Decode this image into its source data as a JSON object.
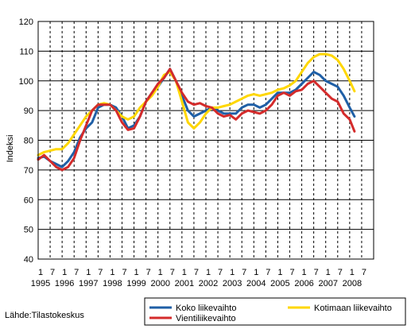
{
  "chart_data": {
    "type": "line",
    "title": "",
    "xlabel": "",
    "ylabel": "Indeksi",
    "ylim": [
      40,
      120
    ],
    "yticks": [
      "40",
      "50",
      "60",
      "70",
      "80",
      "90",
      "100",
      "110",
      "120"
    ],
    "month_ticks": [
      "1",
      "7",
      "1",
      "7",
      "1",
      "7",
      "1",
      "7",
      "1",
      "7",
      "1",
      "7",
      "1",
      "7",
      "1",
      "7",
      "1",
      "7",
      "1",
      "7",
      "1",
      "7",
      "1",
      "7",
      "1",
      "7",
      "1",
      "7"
    ],
    "year_ticks": [
      "1995",
      "1996",
      "1997",
      "1998",
      "1999",
      "2000",
      "2001",
      "2002",
      "2003",
      "2004",
      "2005",
      "2006",
      "2007",
      "2008"
    ],
    "x_start": 1995.0,
    "x_end": 2009.0,
    "grid": true,
    "legend_position": "bottom",
    "source": "Lähde:Tilastokeskus",
    "series": [
      {
        "name": "Koko liikevaihto",
        "color": "#1f5fa6",
        "points": [
          [
            1995.0,
            74
          ],
          [
            1995.25,
            74.5
          ],
          [
            1995.5,
            73
          ],
          [
            1995.75,
            72
          ],
          [
            1996.0,
            71
          ],
          [
            1996.25,
            73
          ],
          [
            1996.5,
            76
          ],
          [
            1996.75,
            81
          ],
          [
            1997.0,
            84
          ],
          [
            1997.25,
            86
          ],
          [
            1997.5,
            91
          ],
          [
            1997.75,
            92
          ],
          [
            1998.0,
            92
          ],
          [
            1998.25,
            91
          ],
          [
            1998.5,
            88
          ],
          [
            1998.75,
            84
          ],
          [
            1999.0,
            85
          ],
          [
            1999.25,
            88
          ],
          [
            1999.5,
            93
          ],
          [
            1999.75,
            96
          ],
          [
            2000.0,
            98
          ],
          [
            2000.25,
            101
          ],
          [
            2000.5,
            104
          ],
          [
            2000.75,
            100
          ],
          [
            2001.0,
            95
          ],
          [
            2001.25,
            90
          ],
          [
            2001.5,
            88
          ],
          [
            2001.75,
            89
          ],
          [
            2002.0,
            90
          ],
          [
            2002.25,
            91
          ],
          [
            2002.5,
            90
          ],
          [
            2002.75,
            89
          ],
          [
            2003.0,
            89
          ],
          [
            2003.25,
            89
          ],
          [
            2003.5,
            91
          ],
          [
            2003.75,
            92
          ],
          [
            2004.0,
            92
          ],
          [
            2004.25,
            91
          ],
          [
            2004.5,
            92
          ],
          [
            2004.75,
            94
          ],
          [
            2005.0,
            96
          ],
          [
            2005.25,
            96
          ],
          [
            2005.5,
            96
          ],
          [
            2005.75,
            97
          ],
          [
            2006.0,
            99
          ],
          [
            2006.25,
            101
          ],
          [
            2006.5,
            103
          ],
          [
            2006.75,
            102
          ],
          [
            2007.0,
            100
          ],
          [
            2007.25,
            99
          ],
          [
            2007.5,
            98
          ],
          [
            2007.75,
            95
          ],
          [
            2008.0,
            91
          ],
          [
            2008.2,
            88
          ]
        ]
      },
      {
        "name": "Kotimaan liikevaihto",
        "color": "#ffd700",
        "points": [
          [
            1995.0,
            75
          ],
          [
            1995.25,
            76
          ],
          [
            1995.5,
            76.5
          ],
          [
            1995.75,
            77
          ],
          [
            1996.0,
            77
          ],
          [
            1996.25,
            79
          ],
          [
            1996.5,
            82
          ],
          [
            1996.75,
            85
          ],
          [
            1997.0,
            88
          ],
          [
            1997.25,
            90
          ],
          [
            1997.5,
            92
          ],
          [
            1997.75,
            92.5
          ],
          [
            1998.0,
            92
          ],
          [
            1998.25,
            90
          ],
          [
            1998.5,
            88
          ],
          [
            1998.75,
            87
          ],
          [
            1999.0,
            88
          ],
          [
            1999.25,
            91
          ],
          [
            1999.5,
            93
          ],
          [
            1999.75,
            95
          ],
          [
            2000.0,
            98
          ],
          [
            2000.25,
            102
          ],
          [
            2000.5,
            103
          ],
          [
            2000.75,
            100
          ],
          [
            2001.0,
            93
          ],
          [
            2001.25,
            86
          ],
          [
            2001.5,
            84
          ],
          [
            2001.75,
            86
          ],
          [
            2002.0,
            89
          ],
          [
            2002.25,
            91
          ],
          [
            2002.5,
            91
          ],
          [
            2002.75,
            91.5
          ],
          [
            2003.0,
            92
          ],
          [
            2003.25,
            93
          ],
          [
            2003.5,
            94
          ],
          [
            2003.75,
            95
          ],
          [
            2004.0,
            95.5
          ],
          [
            2004.25,
            95
          ],
          [
            2004.5,
            95.5
          ],
          [
            2004.75,
            96
          ],
          [
            2005.0,
            97
          ],
          [
            2005.25,
            97.5
          ],
          [
            2005.5,
            98.5
          ],
          [
            2005.75,
            100
          ],
          [
            2006.0,
            103
          ],
          [
            2006.25,
            106
          ],
          [
            2006.5,
            108
          ],
          [
            2006.75,
            109
          ],
          [
            2007.0,
            109
          ],
          [
            2007.25,
            108.5
          ],
          [
            2007.5,
            107
          ],
          [
            2007.75,
            104
          ],
          [
            2008.0,
            100
          ],
          [
            2008.2,
            96.5
          ]
        ]
      },
      {
        "name": "Vientiliikevaihto",
        "color": "#d42b2b",
        "points": [
          [
            1995.0,
            73.5
          ],
          [
            1995.25,
            75
          ],
          [
            1995.5,
            73
          ],
          [
            1995.75,
            71
          ],
          [
            1996.0,
            70
          ],
          [
            1996.25,
            71
          ],
          [
            1996.5,
            74
          ],
          [
            1996.75,
            80
          ],
          [
            1997.0,
            85
          ],
          [
            1997.25,
            90
          ],
          [
            1997.5,
            92
          ],
          [
            1997.75,
            92
          ],
          [
            1998.0,
            92
          ],
          [
            1998.25,
            90
          ],
          [
            1998.5,
            86
          ],
          [
            1998.75,
            83.5
          ],
          [
            1999.0,
            84
          ],
          [
            1999.25,
            88
          ],
          [
            1999.5,
            93
          ],
          [
            1999.75,
            96
          ],
          [
            2000.0,
            99
          ],
          [
            2000.25,
            101
          ],
          [
            2000.5,
            104
          ],
          [
            2000.75,
            100
          ],
          [
            2001.0,
            96
          ],
          [
            2001.25,
            93
          ],
          [
            2001.5,
            92
          ],
          [
            2001.75,
            92.5
          ],
          [
            2002.0,
            91.5
          ],
          [
            2002.25,
            91
          ],
          [
            2002.5,
            89
          ],
          [
            2002.75,
            88
          ],
          [
            2003.0,
            88.5
          ],
          [
            2003.25,
            87
          ],
          [
            2003.5,
            89
          ],
          [
            2003.75,
            90
          ],
          [
            2004.0,
            89.5
          ],
          [
            2004.25,
            89
          ],
          [
            2004.5,
            90
          ],
          [
            2004.75,
            92
          ],
          [
            2005.0,
            95
          ],
          [
            2005.25,
            96
          ],
          [
            2005.5,
            95
          ],
          [
            2005.75,
            96.5
          ],
          [
            2006.0,
            97
          ],
          [
            2006.25,
            99
          ],
          [
            2006.5,
            100
          ],
          [
            2006.75,
            98
          ],
          [
            2007.0,
            96
          ],
          [
            2007.25,
            94
          ],
          [
            2007.5,
            93
          ],
          [
            2007.75,
            89
          ],
          [
            2008.0,
            87
          ],
          [
            2008.2,
            83
          ]
        ]
      }
    ]
  }
}
